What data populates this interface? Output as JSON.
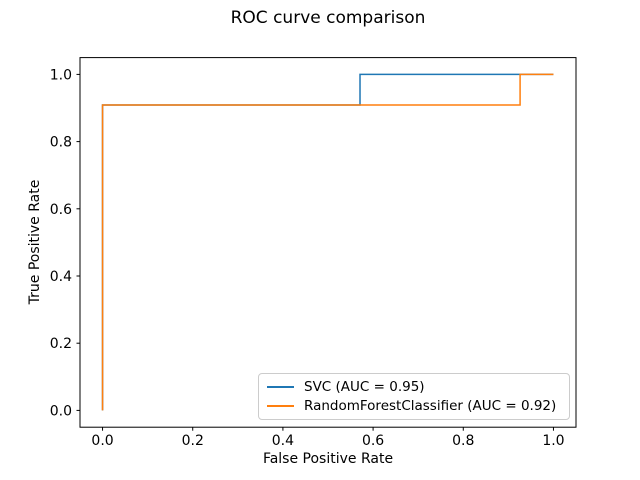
{
  "figure": {
    "background": "#ffffff"
  },
  "chart_data": {
    "type": "line",
    "title": "ROC curve comparison",
    "xlabel": "False Positive Rate",
    "ylabel": "True Positive Rate",
    "xlim": [
      -0.05,
      1.05
    ],
    "ylim": [
      -0.05,
      1.05
    ],
    "xticks": [
      0.0,
      0.2,
      0.4,
      0.6,
      0.8,
      1.0
    ],
    "yticks": [
      0.0,
      0.2,
      0.4,
      0.6,
      0.8,
      1.0
    ],
    "grid": false,
    "legend": {
      "position": "lower right"
    },
    "series": [
      {
        "name": "SVC (AUC = 0.95)",
        "auc": 0.95,
        "color": "#1f77b4",
        "points": [
          [
            0,
            0
          ],
          [
            0,
            0.909
          ],
          [
            0.571,
            0.909
          ],
          [
            0.571,
            1.0
          ],
          [
            1.0,
            1.0
          ]
        ]
      },
      {
        "name": "RandomForestClassifier (AUC = 0.92)",
        "auc": 0.92,
        "color": "#ff7f0e",
        "points": [
          [
            0,
            0
          ],
          [
            0,
            0.909
          ],
          [
            0.926,
            0.909
          ],
          [
            0.926,
            1.0
          ],
          [
            1.0,
            1.0
          ]
        ]
      }
    ]
  }
}
